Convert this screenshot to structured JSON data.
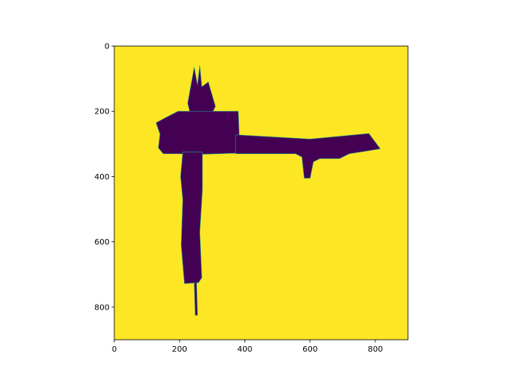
{
  "chart_data": {
    "type": "heatmap",
    "title": "",
    "xlabel": "",
    "ylabel": "",
    "xlim": [
      0,
      900
    ],
    "ylim": [
      900,
      0
    ],
    "x_ticks": [
      0,
      200,
      400,
      600,
      800
    ],
    "y_ticks": [
      0,
      200,
      400,
      600,
      800
    ],
    "grid": false,
    "colormap": "viridis",
    "colors": {
      "background": "#fde725",
      "foreground": "#440154",
      "edge": "#21918c"
    },
    "regions": [
      {
        "name": "mast",
        "value": 0,
        "points": [
          [
            225,
            175
          ],
          [
            245,
            65
          ],
          [
            255,
            120
          ],
          [
            262,
            60
          ],
          [
            268,
            125
          ],
          [
            288,
            110
          ],
          [
            310,
            185
          ],
          [
            300,
            205
          ],
          [
            232,
            205
          ]
        ]
      },
      {
        "name": "upper-bar",
        "value": 0,
        "points": [
          [
            195,
            200
          ],
          [
            380,
            200
          ],
          [
            385,
            328
          ],
          [
            320,
            330
          ],
          [
            255,
            332
          ],
          [
            200,
            330
          ],
          [
            150,
            330
          ],
          [
            135,
            312
          ],
          [
            140,
            270
          ],
          [
            128,
            235
          ],
          [
            160,
            218
          ]
        ]
      },
      {
        "name": "right-arm",
        "value": 0,
        "points": [
          [
            372,
            272
          ],
          [
            600,
            285
          ],
          [
            780,
            268
          ],
          [
            815,
            315
          ],
          [
            720,
            330
          ],
          [
            690,
            345
          ],
          [
            630,
            345
          ],
          [
            610,
            355
          ],
          [
            600,
            405
          ],
          [
            582,
            405
          ],
          [
            575,
            340
          ],
          [
            555,
            330
          ],
          [
            510,
            330
          ],
          [
            372,
            330
          ]
        ]
      },
      {
        "name": "vertical-column",
        "value": 0,
        "points": [
          [
            210,
            325
          ],
          [
            270,
            325
          ],
          [
            270,
            440
          ],
          [
            262,
            570
          ],
          [
            268,
            710
          ],
          [
            258,
            725
          ],
          [
            215,
            728
          ],
          [
            205,
            610
          ],
          [
            210,
            470
          ],
          [
            203,
            400
          ]
        ]
      },
      {
        "name": "bottom-spike",
        "value": 0,
        "points": [
          [
            245,
            725
          ],
          [
            252,
            725
          ],
          [
            255,
            825
          ],
          [
            248,
            825
          ]
        ]
      }
    ]
  }
}
